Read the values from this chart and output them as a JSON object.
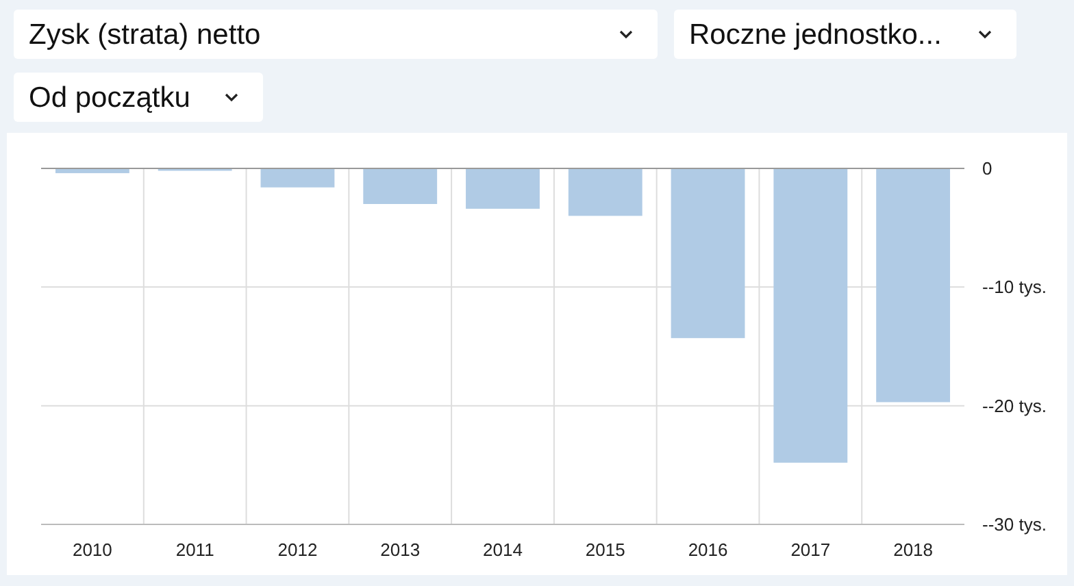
{
  "chart_data": {
    "type": "bar",
    "title": "Zysk (strata) netto",
    "subtitle": "Roczne jednostko...",
    "annotations": [
      "Od początku"
    ],
    "categories": [
      "2010",
      "2011",
      "2012",
      "2013",
      "2014",
      "2015",
      "2016",
      "2017",
      "2018"
    ],
    "values": [
      -0.4,
      -0.2,
      -1.6,
      -3.0,
      -3.4,
      -4.0,
      -14.3,
      -24.8,
      -19.7
    ],
    "color": "#b0cbe5",
    "ylim": [
      -30,
      0
    ],
    "yticks": [
      {
        "value": 0,
        "label": "0"
      },
      {
        "value": -10,
        "label": "--10 tys."
      },
      {
        "value": -20,
        "label": "--20 tys."
      },
      {
        "value": -30,
        "label": "--30 tys."
      }
    ],
    "grid": true
  }
}
